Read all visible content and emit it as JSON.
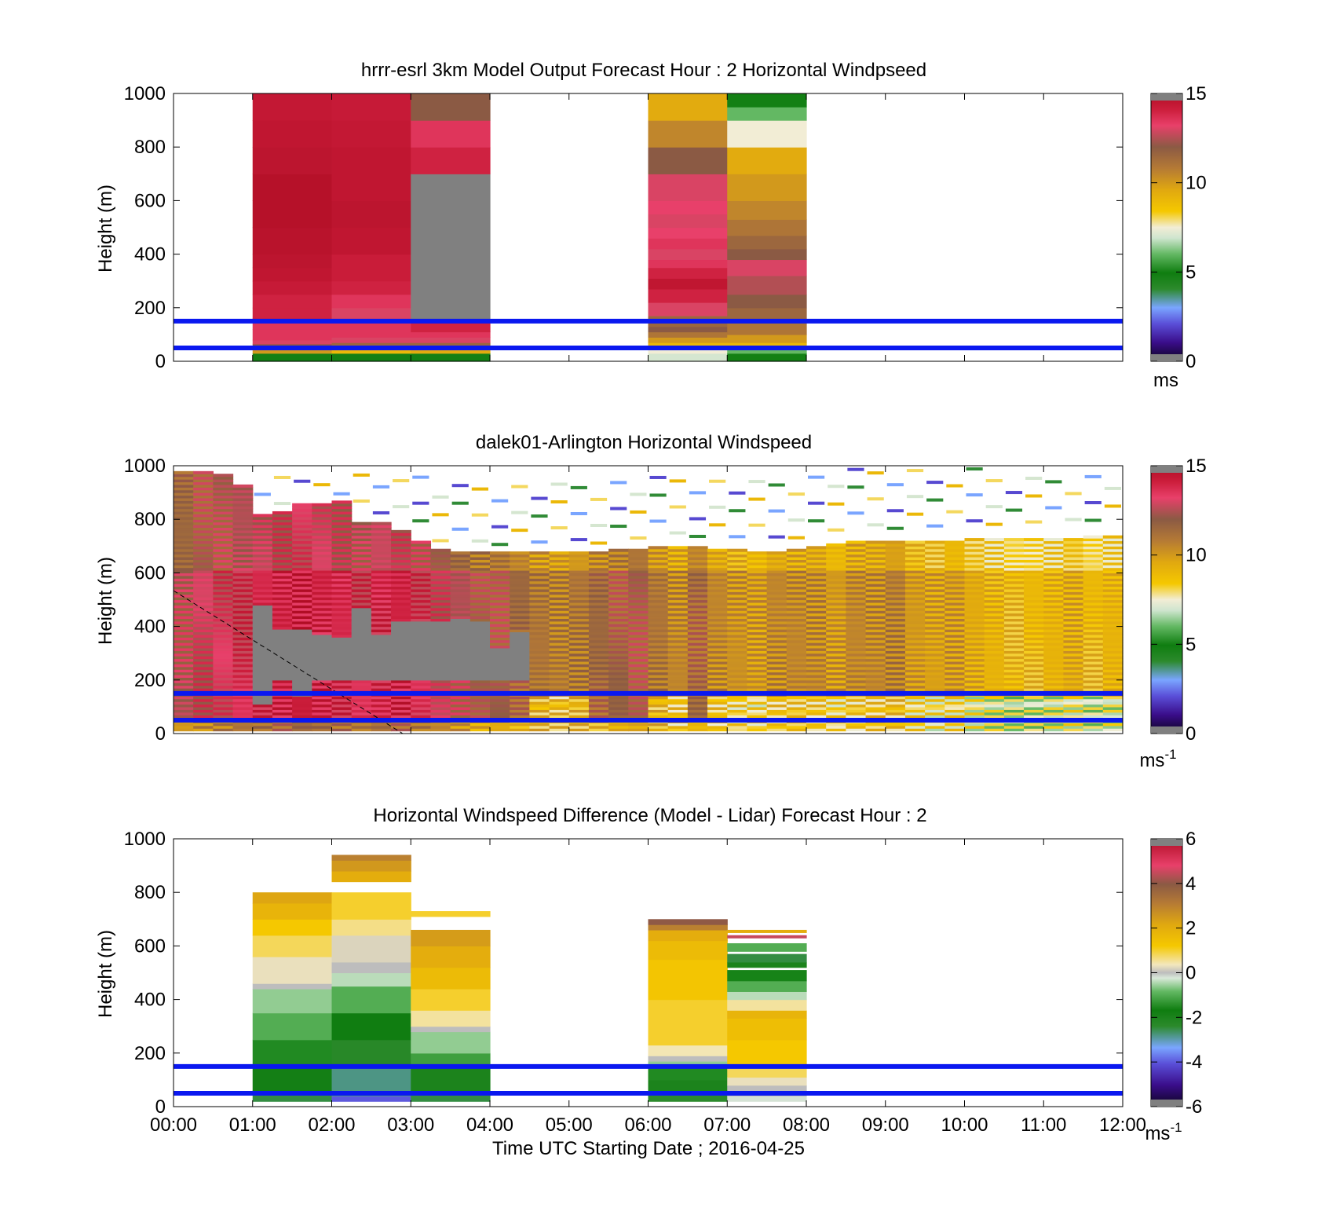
{
  "x_axis": {
    "ticks": [
      "00:00",
      "01:00",
      "02:00",
      "03:00",
      "04:00",
      "05:00",
      "06:00",
      "07:00",
      "08:00",
      "09:00",
      "10:00",
      "11:00",
      "12:00"
    ],
    "label": "Time UTC  Starting Date ; 2016-04-25"
  },
  "y_axis": {
    "label": "Height (m)",
    "ticks": [
      "0",
      "200",
      "400",
      "600",
      "800",
      "1000"
    ],
    "ylim": [
      0,
      1000
    ]
  },
  "reference_lines_m": [
    50,
    150
  ],
  "reference_line_color": "#0a18f0",
  "missing_color": "#808080",
  "chart_data": [
    {
      "type": "heatmap",
      "title": "hrrr-esrl 3km Model Output   Forecast Hour : 2 Horizontal Windpseed",
      "ylabel": "Height (m)",
      "xlabel": "",
      "ylim": [
        0,
        1000
      ],
      "xlim_hours": [
        0,
        12
      ],
      "colorbar": {
        "ticks": [
          "0",
          "5",
          "10",
          "15"
        ],
        "range": [
          0,
          15
        ],
        "unit": "ms"
      },
      "columns": [
        {
          "start_hour": 1,
          "values": [
            [
              0,
              5
            ],
            [
              30,
              10
            ],
            [
              50,
              12
            ],
            [
              65,
              13
            ],
            [
              80,
              13.5
            ],
            [
              120,
              13.5
            ],
            [
              160,
              14
            ],
            [
              200,
              14
            ],
            [
              250,
              14.3
            ],
            [
              300,
              14.5
            ],
            [
              350,
              14.6
            ],
            [
              400,
              14.7
            ],
            [
              500,
              14.8
            ],
            [
              600,
              14.8
            ],
            [
              700,
              14.6
            ],
            [
              800,
              14.5
            ],
            [
              900,
              14.4
            ]
          ]
        },
        {
          "start_hour": 2,
          "values": [
            [
              0,
              5
            ],
            [
              30,
              9
            ],
            [
              50,
              11.5
            ],
            [
              70,
              13
            ],
            [
              90,
              13.5
            ],
            [
              150,
              13
            ],
            [
              200,
              13.5
            ],
            [
              250,
              14
            ],
            [
              300,
              14.2
            ],
            [
              400,
              14.5
            ],
            [
              500,
              14.6
            ],
            [
              600,
              14.5
            ],
            [
              700,
              14.5
            ],
            [
              800,
              14.4
            ],
            [
              900,
              14.3
            ]
          ]
        },
        {
          "start_hour": 3,
          "values": [
            [
              0,
              5
            ],
            [
              30,
              9.5
            ],
            [
              50,
              11.5
            ],
            [
              70,
              13
            ],
            [
              90,
              13.5
            ],
            [
              110,
              14
            ],
            [
              150,
              null
            ],
            [
              700,
              14
            ],
            [
              800,
              13.5
            ],
            [
              900,
              12
            ]
          ]
        },
        {
          "start_hour": 6,
          "values": [
            [
              0,
              7
            ],
            [
              30,
              7.5
            ],
            [
              50,
              9
            ],
            [
              70,
              10
            ],
            [
              90,
              11
            ],
            [
              110,
              12
            ],
            [
              130,
              11.5
            ],
            [
              170,
              13
            ],
            [
              220,
              14
            ],
            [
              270,
              14.5
            ],
            [
              310,
              14
            ],
            [
              350,
              13.5
            ],
            [
              380,
              13
            ],
            [
              420,
              13.5
            ],
            [
              460,
              13.2
            ],
            [
              500,
              13
            ],
            [
              550,
              13.2
            ],
            [
              600,
              13
            ],
            [
              700,
              12
            ],
            [
              800,
              10.5
            ],
            [
              900,
              9.5
            ],
            [
              1000,
              null
            ]
          ]
        },
        {
          "start_hour": 7,
          "values": [
            [
              0,
              5
            ],
            [
              30,
              6
            ],
            [
              50,
              9
            ],
            [
              70,
              10
            ],
            [
              100,
              11
            ],
            [
              150,
              11.5
            ],
            [
              200,
              12
            ],
            [
              250,
              12.5
            ],
            [
              320,
              13
            ],
            [
              380,
              12
            ],
            [
              420,
              11.5
            ],
            [
              470,
              11
            ],
            [
              530,
              10.5
            ],
            [
              600,
              10
            ],
            [
              700,
              9.5
            ],
            [
              800,
              7.5
            ],
            [
              900,
              6
            ],
            [
              950,
              5
            ]
          ]
        }
      ]
    },
    {
      "type": "heatmap",
      "title": "dalek01-Arlington  Horizontal Windspeed",
      "ylabel": "Height (m)",
      "xlabel": "",
      "ylim": [
        0,
        1000
      ],
      "xlim_hours": [
        0,
        12
      ],
      "colorbar": {
        "ticks": [
          "0",
          "5",
          "10",
          "15"
        ],
        "range": [
          0,
          15
        ],
        "unit": "ms-1"
      },
      "columns_start_hour": 0,
      "column_width_hours": 0.25,
      "column_values_ms": [
        12.5,
        13,
        13.2,
        13.5,
        13.8,
        14,
        14.2,
        14,
        13.8,
        13.5,
        13.8,
        14,
        13.5,
        13,
        12.5,
        12,
        12,
        11.5,
        11,
        10.8,
        11,
        11.5,
        11.8,
        12,
        11,
        10.5,
        11.5,
        10.5,
        10.2,
        10,
        10.5,
        10.5,
        10.5,
        10,
        10.5,
        10.5,
        10.8,
        10,
        9.8,
        10,
        9.5,
        9.2,
        9,
        9,
        9.2,
        9.5,
        9,
        9.2
      ],
      "valid_top_m": [
        980,
        980,
        970,
        930,
        820,
        830,
        860,
        860,
        870,
        790,
        790,
        760,
        720,
        690,
        680,
        680,
        680,
        680,
        680,
        680,
        680,
        680,
        690,
        690,
        700,
        700,
        700,
        690,
        690,
        680,
        680,
        690,
        700,
        710,
        720,
        720,
        720,
        720,
        720,
        720,
        730,
        730,
        730,
        730,
        730,
        730,
        740,
        740
      ],
      "missing_ranges_m": [
        [
          null,
          null
        ],
        [
          null,
          null
        ],
        [
          null,
          null
        ],
        [
          null,
          null
        ],
        [
          110,
          480
        ],
        [
          200,
          390
        ],
        [
          140,
          390
        ],
        [
          200,
          370
        ],
        [
          200,
          360
        ],
        [
          200,
          470
        ],
        [
          200,
          370
        ],
        [
          200,
          420
        ],
        [
          200,
          420
        ],
        [
          200,
          420
        ],
        [
          200,
          430
        ],
        [
          200,
          420
        ],
        [
          200,
          320
        ],
        [
          200,
          380
        ],
        [
          null,
          null
        ]
      ],
      "annotation": "dashed diagonal line"
    },
    {
      "type": "heatmap",
      "title": "Horizontal Windspeed Difference (Model - Lidar) Forecast Hour : 2",
      "ylabel": "Height (m)",
      "xlabel": "Time UTC  Starting Date ; 2016-04-25",
      "ylim": [
        0,
        1000
      ],
      "xlim_hours": [
        0,
        12
      ],
      "colorbar": {
        "ticks": [
          "-6",
          "-4",
          "-2",
          "0",
          "2",
          "4",
          "6"
        ],
        "range": [
          -6,
          6
        ],
        "unit": "ms-1"
      },
      "columns": [
        {
          "start_hour": 1,
          "values": [
            [
              20,
              -2.5
            ],
            [
              60,
              -1.8
            ],
            [
              150,
              -1.5
            ],
            [
              250,
              -1
            ],
            [
              350,
              -0.6
            ],
            [
              440,
              0
            ],
            [
              460,
              0.3
            ],
            [
              560,
              0.8
            ],
            [
              640,
              1.2
            ],
            [
              700,
              1.8
            ],
            [
              760,
              2.2
            ],
            [
              800,
              null
            ]
          ]
        },
        {
          "start_hour": 2,
          "values": [
            [
              20,
              -4
            ],
            [
              40,
              -2.8
            ],
            [
              150,
              -2.3
            ],
            [
              250,
              -1.7
            ],
            [
              350,
              -1
            ],
            [
              450,
              -0.4
            ],
            [
              500,
              0
            ],
            [
              540,
              0.2
            ],
            [
              640,
              0.6
            ],
            [
              700,
              1
            ],
            [
              800,
              null
            ],
            [
              840,
              2
            ],
            [
              880,
              2.5
            ],
            [
              920,
              3
            ],
            [
              940,
              null
            ]
          ]
        },
        {
          "start_hour": 3,
          "values": [
            [
              20,
              -2.5
            ],
            [
              50,
              -2
            ],
            [
              150,
              -1.2
            ],
            [
              200,
              -0.6
            ],
            [
              280,
              0
            ],
            [
              300,
              0.5
            ],
            [
              360,
              1
            ],
            [
              440,
              1.6
            ],
            [
              520,
              2
            ],
            [
              600,
              2.4
            ],
            [
              660,
              null
            ],
            [
              710,
              1
            ],
            [
              730,
              null
            ]
          ]
        },
        {
          "start_hour": 6,
          "values": [
            [
              20,
              -2.4
            ],
            [
              50,
              -2
            ],
            [
              100,
              -1.5
            ],
            [
              150,
              -0.6
            ],
            [
              170,
              0
            ],
            [
              190,
              0.4
            ],
            [
              230,
              1
            ],
            [
              400,
              1.3
            ],
            [
              550,
              1.6
            ],
            [
              620,
              2
            ],
            [
              660,
              3
            ],
            [
              680,
              4
            ],
            [
              700,
              null
            ]
          ]
        },
        {
          "start_hour": 7,
          "values": [
            [
              20,
              -0.2
            ],
            [
              40,
              0
            ],
            [
              80,
              0.3
            ],
            [
              110,
              0.8
            ],
            [
              150,
              1.2
            ],
            [
              250,
              1.5
            ],
            [
              330,
              1.8
            ],
            [
              360,
              0.5
            ],
            [
              400,
              -0.4
            ],
            [
              430,
              -1
            ],
            [
              470,
              -1.6
            ],
            [
              510,
              null
            ],
            [
              520,
              -2
            ],
            [
              540,
              -2.5
            ],
            [
              570,
              null
            ],
            [
              580,
              -1
            ],
            [
              610,
              null
            ],
            [
              630,
              4.5
            ],
            [
              640,
              null
            ],
            [
              650,
              2
            ],
            [
              660,
              null
            ]
          ]
        }
      ]
    }
  ]
}
